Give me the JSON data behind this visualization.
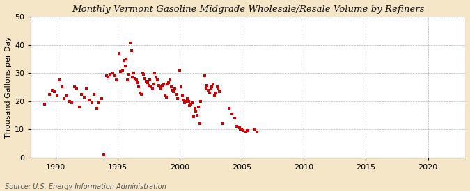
{
  "title": "Monthly Vermont Gasoline Midgrade Wholesale/Resale Volume by Refiners",
  "ylabel": "Thousand Gallons per Day",
  "source": "Source: U.S. Energy Information Administration",
  "background_color": "#f5e6c8",
  "plot_bg_color": "#ffffff",
  "marker_color": "#cc0000",
  "marker_size": 12,
  "xlim": [
    1988.0,
    2023.0
  ],
  "ylim": [
    0,
    50
  ],
  "xticks": [
    1990,
    1995,
    2000,
    2005,
    2010,
    2015,
    2020
  ],
  "yticks": [
    0,
    10,
    20,
    30,
    40,
    50
  ],
  "data_points": [
    [
      1989.1,
      19.0
    ],
    [
      1989.5,
      22.5
    ],
    [
      1989.7,
      24.0
    ],
    [
      1989.9,
      23.5
    ],
    [
      1990.1,
      22.0
    ],
    [
      1990.3,
      27.5
    ],
    [
      1990.5,
      25.0
    ],
    [
      1990.7,
      21.0
    ],
    [
      1990.9,
      22.0
    ],
    [
      1991.1,
      20.0
    ],
    [
      1991.3,
      19.5
    ],
    [
      1991.5,
      25.0
    ],
    [
      1991.7,
      24.5
    ],
    [
      1991.9,
      18.0
    ],
    [
      1992.1,
      22.5
    ],
    [
      1992.3,
      21.5
    ],
    [
      1992.5,
      24.5
    ],
    [
      1992.7,
      20.5
    ],
    [
      1992.9,
      19.5
    ],
    [
      1993.1,
      22.5
    ],
    [
      1993.3,
      17.5
    ],
    [
      1993.5,
      19.5
    ],
    [
      1993.7,
      21.0
    ],
    [
      1993.9,
      1.0
    ],
    [
      1994.1,
      29.0
    ],
    [
      1994.2,
      28.5
    ],
    [
      1994.4,
      29.5
    ],
    [
      1994.6,
      30.0
    ],
    [
      1994.8,
      29.0
    ],
    [
      1994.9,
      27.5
    ],
    [
      1995.1,
      37.0
    ],
    [
      1995.2,
      30.5
    ],
    [
      1995.4,
      31.0
    ],
    [
      1995.5,
      34.5
    ],
    [
      1995.6,
      32.5
    ],
    [
      1995.7,
      35.0
    ],
    [
      1995.8,
      27.5
    ],
    [
      1995.9,
      29.5
    ],
    [
      1996.0,
      40.5
    ],
    [
      1996.1,
      38.0
    ],
    [
      1996.2,
      28.5
    ],
    [
      1996.3,
      30.0
    ],
    [
      1996.4,
      28.0
    ],
    [
      1996.5,
      27.5
    ],
    [
      1996.6,
      26.5
    ],
    [
      1996.7,
      25.0
    ],
    [
      1996.8,
      23.0
    ],
    [
      1996.9,
      22.5
    ],
    [
      1997.0,
      30.0
    ],
    [
      1997.1,
      29.5
    ],
    [
      1997.2,
      28.0
    ],
    [
      1997.3,
      27.0
    ],
    [
      1997.4,
      26.5
    ],
    [
      1997.5,
      25.5
    ],
    [
      1997.6,
      27.5
    ],
    [
      1997.7,
      25.0
    ],
    [
      1997.8,
      24.5
    ],
    [
      1997.9,
      26.0
    ],
    [
      1998.0,
      30.0
    ],
    [
      1998.1,
      28.5
    ],
    [
      1998.2,
      27.5
    ],
    [
      1998.3,
      25.5
    ],
    [
      1998.4,
      25.0
    ],
    [
      1998.5,
      24.5
    ],
    [
      1998.6,
      25.5
    ],
    [
      1998.7,
      26.0
    ],
    [
      1998.8,
      22.0
    ],
    [
      1998.9,
      21.5
    ],
    [
      1999.0,
      26.0
    ],
    [
      1999.1,
      26.5
    ],
    [
      1999.2,
      27.5
    ],
    [
      1999.3,
      25.0
    ],
    [
      1999.4,
      24.0
    ],
    [
      1999.5,
      23.5
    ],
    [
      1999.6,
      24.5
    ],
    [
      1999.7,
      22.5
    ],
    [
      1999.8,
      21.0
    ],
    [
      2000.0,
      31.0
    ],
    [
      2000.1,
      25.0
    ],
    [
      2000.2,
      22.0
    ],
    [
      2000.3,
      20.5
    ],
    [
      2000.4,
      19.5
    ],
    [
      2000.5,
      20.0
    ],
    [
      2000.6,
      21.0
    ],
    [
      2000.7,
      20.0
    ],
    [
      2000.8,
      18.5
    ],
    [
      2000.9,
      19.0
    ],
    [
      2001.0,
      19.5
    ],
    [
      2001.1,
      14.5
    ],
    [
      2001.2,
      17.5
    ],
    [
      2001.3,
      16.5
    ],
    [
      2001.4,
      15.0
    ],
    [
      2001.5,
      18.0
    ],
    [
      2001.6,
      12.0
    ],
    [
      2001.7,
      20.0
    ],
    [
      2002.0,
      29.0
    ],
    [
      2002.1,
      24.5
    ],
    [
      2002.2,
      25.5
    ],
    [
      2002.3,
      24.0
    ],
    [
      2002.4,
      23.0
    ],
    [
      2002.5,
      24.5
    ],
    [
      2002.6,
      25.0
    ],
    [
      2002.7,
      26.0
    ],
    [
      2002.8,
      22.0
    ],
    [
      2002.9,
      23.0
    ],
    [
      2003.0,
      25.0
    ],
    [
      2003.1,
      24.5
    ],
    [
      2003.2,
      23.5
    ],
    [
      2003.4,
      12.0
    ],
    [
      2004.0,
      17.5
    ],
    [
      2004.2,
      15.5
    ],
    [
      2004.4,
      14.0
    ],
    [
      2004.6,
      11.0
    ],
    [
      2004.8,
      10.5
    ],
    [
      2004.9,
      10.0
    ],
    [
      2005.0,
      10.0
    ],
    [
      2005.1,
      9.5
    ],
    [
      2005.3,
      9.0
    ],
    [
      2005.5,
      9.5
    ],
    [
      2006.0,
      10.0
    ],
    [
      2006.2,
      9.0
    ]
  ]
}
